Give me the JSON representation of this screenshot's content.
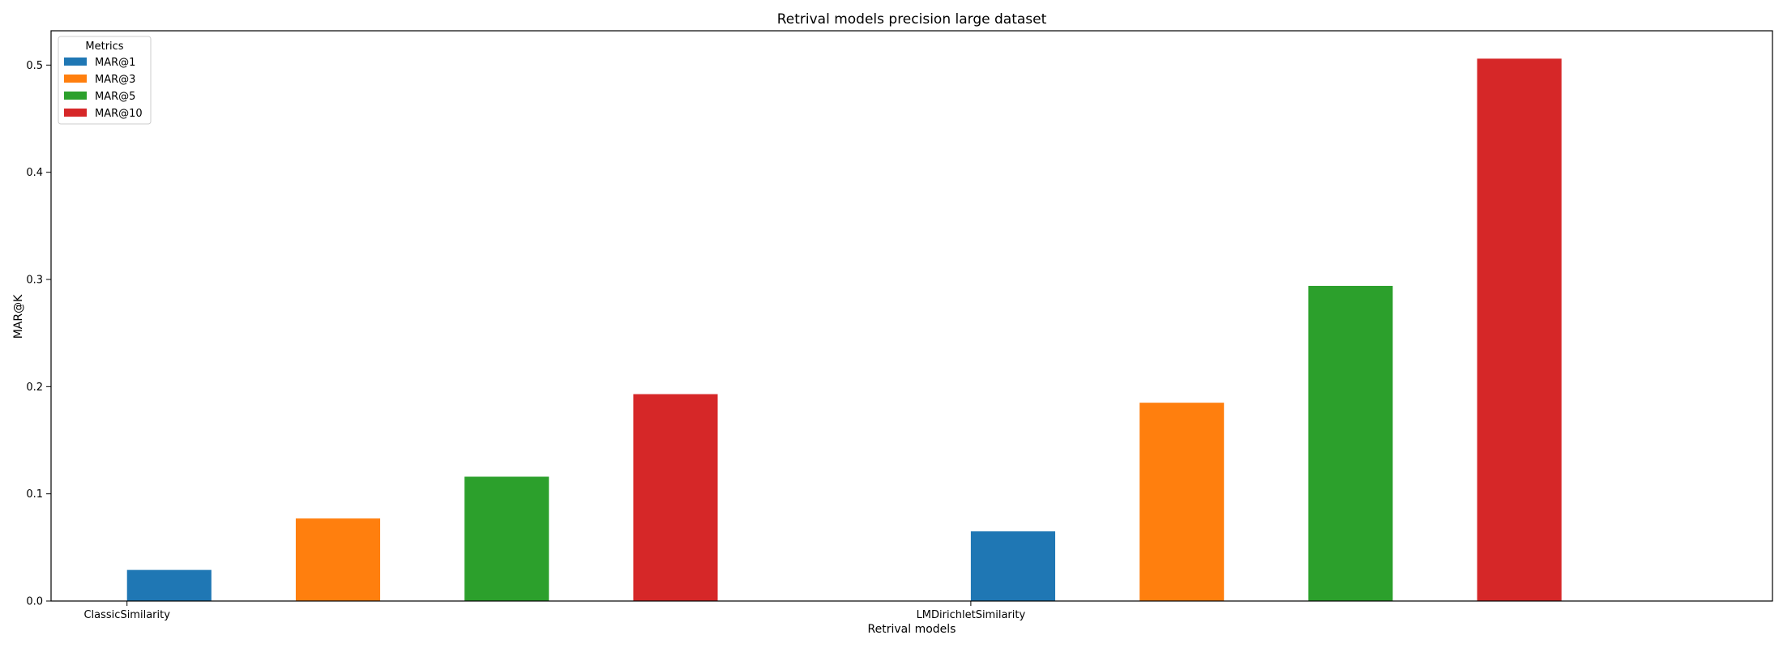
{
  "chart_data": {
    "type": "bar",
    "title": "Retrival models precision large dataset",
    "xlabel": "Retrival models",
    "ylabel": "MAR@K",
    "categories": [
      "ClassicSimilarity",
      "LMDirichletSimilarity"
    ],
    "series": [
      {
        "name": "MAR@1",
        "color": "#1f77b4",
        "values": [
          0.029,
          0.065
        ]
      },
      {
        "name": "MAR@3",
        "color": "#ff7f0e",
        "values": [
          0.077,
          0.185
        ]
      },
      {
        "name": "MAR@5",
        "color": "#2ca02c",
        "values": [
          0.116,
          0.294
        ]
      },
      {
        "name": "MAR@10",
        "color": "#d62728",
        "values": [
          0.193,
          0.506
        ]
      }
    ],
    "ylim": [
      0,
      0.532
    ],
    "yticks": [
      "0.0",
      "0.1",
      "0.2",
      "0.3",
      "0.4",
      "0.5"
    ],
    "grid": false,
    "legend": {
      "title": "Metrics",
      "placement": "top-left"
    }
  }
}
